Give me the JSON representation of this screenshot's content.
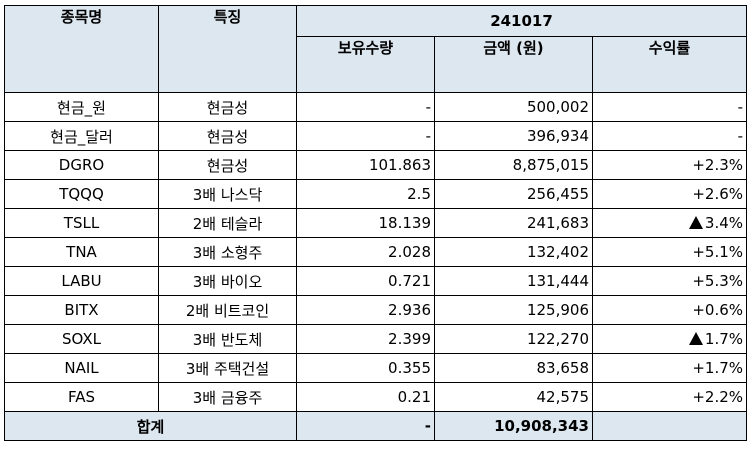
{
  "headers": {
    "name": "종목명",
    "feature": "특징",
    "date": "241017",
    "holdings": "보유수량",
    "amount": "금액 (원)",
    "return": "수익률"
  },
  "rows": [
    {
      "name": "현금_원",
      "feature": "현금성",
      "holdings": "-",
      "amount": "500,002",
      "return": "-",
      "return_up_marker": false
    },
    {
      "name": "현금_달러",
      "feature": "현금성",
      "holdings": "-",
      "amount": "396,934",
      "return": "-",
      "return_up_marker": false
    },
    {
      "name": "DGRO",
      "feature": "현금성",
      "holdings": "101.863",
      "amount": "8,875,015",
      "return": "+2.3%",
      "return_up_marker": false
    },
    {
      "name": "TQQQ",
      "feature": "3배 나스닥",
      "holdings": "2.5",
      "amount": "256,455",
      "return": "+2.6%",
      "return_up_marker": false
    },
    {
      "name": "TSLL",
      "feature": "2배 테슬라",
      "holdings": "18.139",
      "amount": "241,683",
      "return": "3.4%",
      "return_up_marker": true
    },
    {
      "name": "TNA",
      "feature": "3배 소형주",
      "holdings": "2.028",
      "amount": "132,402",
      "return": "+5.1%",
      "return_up_marker": false
    },
    {
      "name": "LABU",
      "feature": "3배 바이오",
      "holdings": "0.721",
      "amount": "131,444",
      "return": "+5.3%",
      "return_up_marker": false
    },
    {
      "name": "BITX",
      "feature": "2배 비트코인",
      "holdings": "2.936",
      "amount": "125,906",
      "return": "+0.6%",
      "return_up_marker": false
    },
    {
      "name": "SOXL",
      "feature": "3배 반도체",
      "holdings": "2.399",
      "amount": "122,270",
      "return": "1.7%",
      "return_up_marker": true
    },
    {
      "name": "NAIL",
      "feature": "3배 주택건설",
      "holdings": "0.355",
      "amount": "83,658",
      "return": "+1.7%",
      "return_up_marker": false
    },
    {
      "name": "FAS",
      "feature": "3배 금융주",
      "holdings": "0.21",
      "amount": "42,575",
      "return": "+2.2%",
      "return_up_marker": false
    }
  ],
  "total": {
    "label": "합계",
    "holdings": "-",
    "amount": "10,908,343",
    "return": ""
  }
}
